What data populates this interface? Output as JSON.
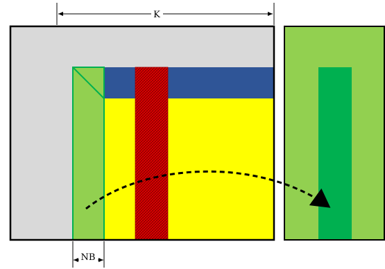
{
  "labels": {
    "k_dimension": "K",
    "nb_dimension": "NB"
  },
  "colors": {
    "background": "#ffffff",
    "matrix_gray": "#d9d9d9",
    "panel_light_green": "#92d050",
    "panel_border_green": "#00b050",
    "header_blue": "#2f5597",
    "region_yellow": "#ffff00",
    "column_red": "#e00000",
    "highlight_green": "#00b050",
    "outline_black": "#000000"
  }
}
